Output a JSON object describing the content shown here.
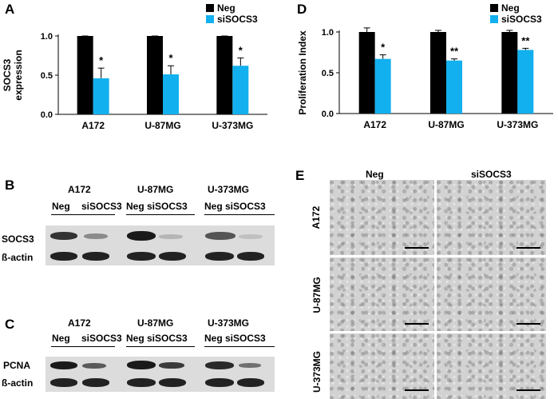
{
  "panels": {
    "a": "A",
    "b": "B",
    "c": "C",
    "d": "D",
    "e": "E"
  },
  "colors": {
    "neg": "#000000",
    "sisocs3": "#12b0ee"
  },
  "chart_data": [
    {
      "type": "bar",
      "panel": "A",
      "title": "",
      "xlabel": "",
      "ylabel": "SOCS3 expression",
      "ylabel_lines": [
        "SOCS3",
        "expression"
      ],
      "ylim": [
        0,
        1.0
      ],
      "yticks": [
        "0.0",
        "0.5",
        "1.0"
      ],
      "categories": [
        "A172",
        "U-87MG",
        "U-373MG"
      ],
      "series": [
        {
          "name": "Neg",
          "values": [
            1.0,
            1.0,
            1.0
          ],
          "errors": [
            0.0,
            0.0,
            0.0
          ],
          "sig": [
            "",
            "",
            ""
          ]
        },
        {
          "name": "siSOCS3",
          "values": [
            0.46,
            0.51,
            0.62
          ],
          "errors": [
            0.13,
            0.11,
            0.1
          ],
          "sig": [
            "*",
            "*",
            "*"
          ]
        }
      ],
      "legend": "top-right"
    },
    {
      "type": "bar",
      "panel": "D",
      "title": "",
      "xlabel": "",
      "ylabel": "Proliferation Index",
      "ylabel_lines": [
        "Proliferation Index"
      ],
      "ylim": [
        0,
        1.0
      ],
      "yticks": [
        "0.0",
        "0.5",
        "1.0"
      ],
      "categories": [
        "A172",
        "U-87MG",
        "U-373MG"
      ],
      "series": [
        {
          "name": "Neg",
          "values": [
            1.0,
            1.0,
            1.0
          ],
          "errors": [
            0.05,
            0.02,
            0.02
          ],
          "sig": [
            "",
            "",
            ""
          ]
        },
        {
          "name": "siSOCS3",
          "values": [
            0.67,
            0.65,
            0.78
          ],
          "errors": [
            0.05,
            0.02,
            0.02
          ],
          "sig": [
            "*",
            "**",
            "**"
          ]
        }
      ],
      "legend": "top-right"
    }
  ],
  "blot_b": {
    "cells": [
      "A172",
      "U-87MG",
      "U-373MG"
    ],
    "lanes": [
      "Neg",
      "siSOCS3",
      "Neg siSOCS3",
      "Neg siSOCS3"
    ],
    "rows": [
      "SOCS3",
      "ß-actin"
    ]
  },
  "blot_c": {
    "cells": [
      "A172",
      "U-87MG",
      "U-373MG"
    ],
    "lanes": [
      "Neg",
      "siSOCS3",
      "Neg siSOCS3",
      "Neg siSOCS3"
    ],
    "rows": [
      "PCNA",
      "ß-actin"
    ]
  },
  "panel_e": {
    "cols": [
      "Neg",
      "siSOCS3"
    ],
    "rows": [
      "A172",
      "U-87MG",
      "U-373MG"
    ]
  }
}
